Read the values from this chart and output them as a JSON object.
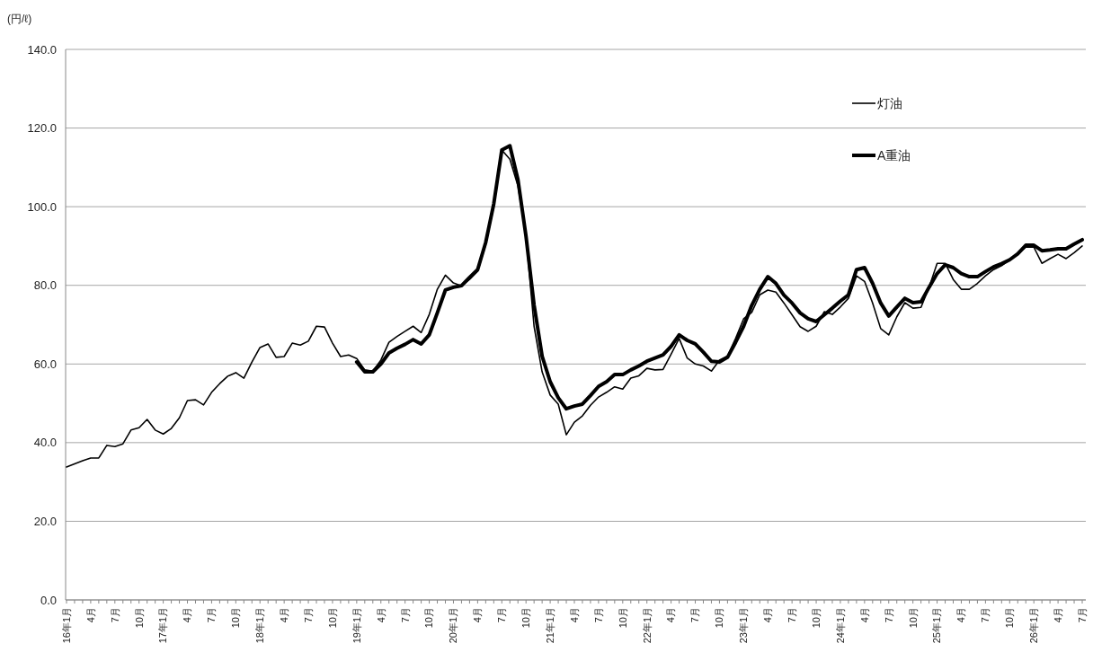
{
  "chart_data": {
    "type": "line",
    "ylabel": "(円/ℓ)",
    "categories": [
      "16年1月",
      null,
      null,
      "4月",
      null,
      null,
      "7月",
      null,
      null,
      "10月",
      null,
      null,
      "17年1月",
      null,
      null,
      "4月",
      null,
      null,
      "7月",
      null,
      null,
      "10月",
      null,
      null,
      "18年1月",
      null,
      null,
      "4月",
      null,
      null,
      "7月",
      null,
      null,
      "10月",
      null,
      null,
      "19年1月",
      null,
      null,
      "4月",
      null,
      null,
      "7月",
      null,
      null,
      "10月",
      null,
      null,
      "20年1月",
      null,
      null,
      "4月",
      null,
      null,
      "7月",
      null,
      null,
      "10月",
      null,
      null,
      "21年1月",
      null,
      null,
      "4月",
      null,
      null,
      "7月",
      null,
      null,
      "10月",
      null,
      null,
      "22年1月",
      null,
      null,
      "4月",
      null,
      null,
      "7月",
      null,
      null,
      "10月",
      null,
      null,
      "23年1月",
      null,
      null,
      "4月",
      null,
      null,
      "7月",
      null,
      null,
      "10月",
      null,
      null,
      "24年1月",
      null,
      null,
      "4月",
      null,
      null,
      "7月",
      null,
      null,
      "10月",
      null,
      null,
      "25年1月",
      null,
      null,
      "4月",
      null,
      null,
      "7月",
      null,
      null,
      "10月",
      null,
      null,
      "26年1月",
      null,
      null,
      "4月",
      null,
      null,
      "7月"
    ],
    "series": [
      {
        "name": "灯油",
        "color": "#000000",
        "values": [
          33.8,
          34.6,
          35.4,
          36.1,
          36.1,
          39.3,
          39.0,
          39.7,
          43.2,
          43.8,
          45.9,
          43.2,
          42.2,
          43.6,
          46.3,
          50.7,
          50.9,
          49.6,
          52.8,
          55.0,
          56.9,
          57.8,
          56.4,
          60.5,
          64.2,
          65.1,
          61.7,
          61.9,
          65.3,
          64.8,
          65.8,
          69.6,
          69.4,
          65.3,
          61.9,
          62.3,
          61.4,
          58.5,
          58.2,
          61.0,
          65.5,
          67.0,
          68.3,
          69.6,
          68.0,
          72.6,
          79.0,
          82.6,
          80.6,
          79.9,
          81.5,
          83.6,
          90.4,
          100.0,
          114.4,
          112.1,
          105.3,
          92.5,
          69.6,
          58.0,
          52.1,
          49.8,
          42.0,
          45.2,
          46.8,
          49.5,
          51.6,
          52.8,
          54.2,
          53.6,
          56.4,
          57.0,
          58.9,
          58.5,
          58.6,
          62.5,
          66.5,
          61.5,
          60.0,
          59.5,
          58.2,
          61.0,
          62.0,
          66.5,
          71.5,
          73.1,
          77.6,
          78.8,
          78.3,
          75.5,
          72.5,
          69.5,
          68.3,
          69.6,
          73.3,
          72.6,
          74.5,
          76.7,
          82.4,
          81.0,
          75.5,
          69.0,
          67.4,
          72.0,
          75.6,
          74.2,
          74.4,
          79.5,
          85.6,
          85.6,
          81.5,
          79.0,
          79.0,
          80.5,
          82.4,
          84.0,
          85.0,
          86.5,
          88.0,
          89.7,
          89.7,
          85.6,
          86.8,
          87.9,
          86.8,
          88.3,
          90.0
        ]
      },
      {
        "name": "A重油",
        "color": "#000000",
        "values": [
          null,
          null,
          null,
          null,
          null,
          null,
          null,
          null,
          null,
          null,
          null,
          null,
          null,
          null,
          null,
          null,
          null,
          null,
          null,
          null,
          null,
          null,
          null,
          null,
          null,
          null,
          null,
          null,
          null,
          null,
          null,
          null,
          null,
          null,
          null,
          null,
          60.5,
          58.0,
          58.0,
          60.0,
          62.8,
          64.0,
          65.0,
          66.2,
          65.1,
          67.4,
          73.0,
          78.8,
          79.5,
          79.9,
          82.0,
          84.0,
          90.9,
          100.7,
          114.4,
          115.5,
          106.9,
          92.5,
          75.0,
          62.0,
          55.5,
          51.4,
          48.6,
          49.3,
          49.8,
          52.0,
          54.3,
          55.5,
          57.3,
          57.3,
          58.5,
          59.5,
          60.7,
          61.5,
          62.3,
          64.5,
          67.4,
          66.0,
          65.1,
          63.0,
          60.7,
          60.5,
          61.7,
          65.5,
          69.6,
          74.9,
          79.0,
          82.2,
          80.5,
          77.5,
          75.5,
          73.0,
          71.5,
          70.8,
          72.5,
          74.2,
          76.0,
          77.6,
          84.0,
          84.5,
          80.5,
          75.5,
          72.2,
          74.5,
          76.7,
          75.6,
          75.8,
          79.5,
          83.0,
          85.2,
          84.5,
          83.0,
          82.2,
          82.2,
          83.5,
          84.7,
          85.5,
          86.5,
          88.0,
          90.2,
          90.2,
          88.8,
          89.0,
          89.3,
          89.3,
          90.5,
          91.6
        ]
      }
    ],
    "ylim": [
      0,
      140
    ],
    "yticks": [
      {
        "value": 0,
        "label": "0.0"
      },
      {
        "value": 20,
        "label": "20.0"
      },
      {
        "value": 40,
        "label": "40.0"
      },
      {
        "value": 60,
        "label": "60.0"
      },
      {
        "value": 80,
        "label": "80.0"
      },
      {
        "value": 100,
        "label": "100.0"
      },
      {
        "value": 120,
        "label": "120.0"
      },
      {
        "value": 140,
        "label": "140.0"
      }
    ],
    "grid": "y",
    "legend": "top right",
    "line_style": "solid",
    "marker": "none"
  }
}
